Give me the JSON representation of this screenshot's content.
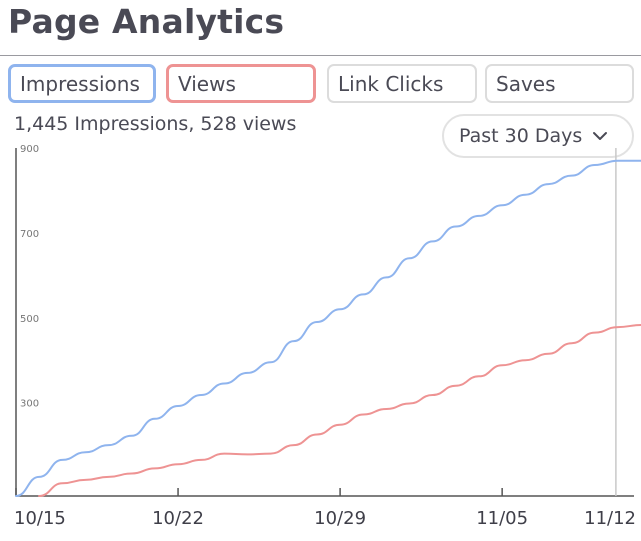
{
  "header": {
    "title": "Page Analytics"
  },
  "tabs": [
    {
      "label": "Impressions",
      "color": "#8fb4ee"
    },
    {
      "label": "Views",
      "color": "#ee9393"
    },
    {
      "label": "Link Clicks"
    },
    {
      "label": "Saves"
    }
  ],
  "summary": {
    "text": "1,445 Impressions, 528 views"
  },
  "date_range": {
    "label": "Past 30 Days",
    "icon": "chevron-down-icon"
  },
  "chart_data": {
    "type": "line",
    "x_ticks": [
      "10/15",
      "10/22",
      "10/29",
      "11/05",
      "11/12"
    ],
    "y_ticks": [
      900,
      700,
      500,
      300
    ],
    "ylim": [
      80,
      900
    ],
    "grid": false,
    "marker_date": "11/10",
    "series": [
      {
        "color": "#8fb4ee",
        "points": [
          [
            "10/15",
            80
          ],
          [
            "10/16",
            125
          ],
          [
            "10/17",
            165
          ],
          [
            "10/18",
            183
          ],
          [
            "10/19",
            200
          ],
          [
            "10/20",
            222
          ],
          [
            "10/21",
            262
          ],
          [
            "10/22",
            292
          ],
          [
            "10/23",
            318
          ],
          [
            "10/24",
            345
          ],
          [
            "10/25",
            370
          ],
          [
            "10/26",
            395
          ],
          [
            "10/27",
            445
          ],
          [
            "10/28",
            490
          ],
          [
            "10/29",
            520
          ],
          [
            "10/30",
            555
          ],
          [
            "10/31",
            595
          ],
          [
            "11/01",
            640
          ],
          [
            "11/02",
            680
          ],
          [
            "11/03",
            715
          ],
          [
            "11/04",
            740
          ],
          [
            "11/05",
            765
          ],
          [
            "11/06",
            790
          ],
          [
            "11/07",
            815
          ],
          [
            "11/08",
            835
          ],
          [
            "11/09",
            860
          ],
          [
            "11/10",
            870
          ],
          [
            "11/11",
            870
          ],
          [
            "11/12",
            870
          ]
        ]
      },
      {
        "color": "#ee9393",
        "points": [
          [
            "10/16",
            80
          ],
          [
            "10/17",
            110
          ],
          [
            "10/18",
            118
          ],
          [
            "10/19",
            125
          ],
          [
            "10/20",
            133
          ],
          [
            "10/21",
            145
          ],
          [
            "10/22",
            155
          ],
          [
            "10/23",
            165
          ],
          [
            "10/24",
            180
          ],
          [
            "10/25",
            178
          ],
          [
            "10/26",
            180
          ],
          [
            "10/27",
            200
          ],
          [
            "10/28",
            225
          ],
          [
            "10/29",
            248
          ],
          [
            "10/30",
            272
          ],
          [
            "10/31",
            285
          ],
          [
            "11/01",
            298
          ],
          [
            "11/02",
            318
          ],
          [
            "11/03",
            340
          ],
          [
            "11/04",
            362
          ],
          [
            "11/05",
            388
          ],
          [
            "11/06",
            400
          ],
          [
            "11/07",
            415
          ],
          [
            "11/08",
            440
          ],
          [
            "11/09",
            465
          ],
          [
            "11/10",
            478
          ],
          [
            "11/11",
            483
          ],
          [
            "11/12",
            495
          ]
        ]
      }
    ]
  }
}
